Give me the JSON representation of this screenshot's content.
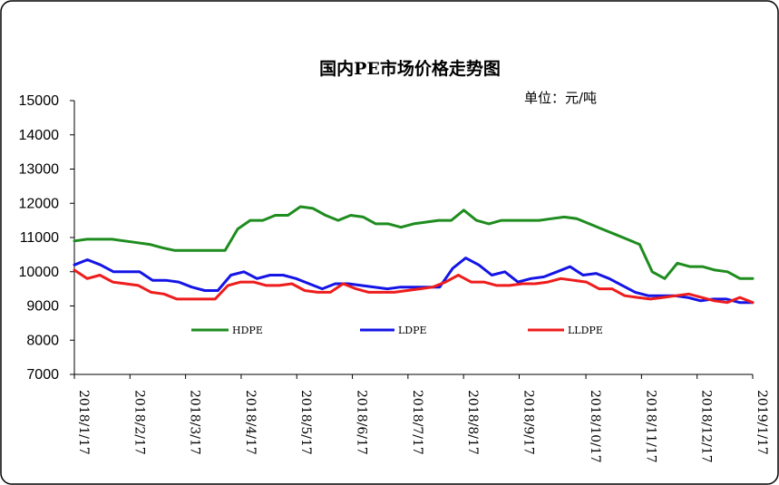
{
  "chart_data": {
    "type": "line",
    "title": "国内PE市场价格走势图",
    "unit_label": "单位：元/吨",
    "xlabel": "",
    "ylabel": "",
    "ylim": [
      7000,
      15000
    ],
    "yticks": [
      7000,
      8000,
      9000,
      10000,
      11000,
      12000,
      13000,
      14000,
      15000
    ],
    "grid": false,
    "legend_position": "inside-bottom",
    "x_tick_labels": [
      {
        "label": "2018/1/17",
        "index": 0
      },
      {
        "label": "2018/2/17",
        "index": 5
      },
      {
        "label": "2018/3/17",
        "index": 10
      },
      {
        "label": "2018/4/17",
        "index": 15
      },
      {
        "label": "2018/5/17",
        "index": 20
      },
      {
        "label": "2018/6/17",
        "index": 25
      },
      {
        "label": "2018/7/17",
        "index": 30
      },
      {
        "label": "2018/8/17",
        "index": 35
      },
      {
        "label": "2018/9/17",
        "index": 40
      },
      {
        "label": "2018/10/17",
        "index": 46
      },
      {
        "label": "2018/11/17",
        "index": 51
      },
      {
        "label": "2018/12/17",
        "index": 56
      },
      {
        "label": "2019/1/17",
        "index": 61
      }
    ],
    "series": [
      {
        "name": "HDPE",
        "color": "#1e8c1e",
        "values": [
          10900,
          10950,
          10950,
          10950,
          10900,
          10850,
          10800,
          10700,
          10620,
          10620,
          10620,
          10620,
          10620,
          11250,
          11500,
          11500,
          11650,
          11650,
          11900,
          11850,
          11650,
          11500,
          11650,
          11600,
          11400,
          11400,
          11300,
          11400,
          11450,
          11500,
          11500,
          11800,
          11500,
          11400,
          11500,
          11500,
          11500,
          11500,
          11550,
          11600,
          11550,
          11400,
          11250,
          11100,
          10950,
          10800,
          10000,
          9800,
          10250,
          10150,
          10150,
          10050,
          10000,
          9800,
          9800
        ]
      },
      {
        "name": "LDPE",
        "color": "#1414e6",
        "values": [
          10200,
          10350,
          10200,
          10000,
          10000,
          10000,
          9750,
          9750,
          9700,
          9550,
          9450,
          9450,
          9900,
          10000,
          9800,
          9900,
          9900,
          9800,
          9650,
          9500,
          9650,
          9650,
          9600,
          9550,
          9500,
          9550,
          9550,
          9550,
          9550,
          10100,
          10400,
          10200,
          9900,
          10000,
          9700,
          9800,
          9850,
          10000,
          10150,
          9900,
          9950,
          9800,
          9600,
          9400,
          9300,
          9300,
          9300,
          9250,
          9150,
          9200,
          9200,
          9100,
          9100
        ]
      },
      {
        "name": "LLDPE",
        "color": "#ee1c1c",
        "values": [
          10050,
          9800,
          9900,
          9700,
          9650,
          9600,
          9400,
          9350,
          9200,
          9200,
          9200,
          9200,
          9600,
          9700,
          9700,
          9600,
          9600,
          9650,
          9450,
          9400,
          9400,
          9650,
          9500,
          9400,
          9400,
          9400,
          9450,
          9500,
          9550,
          9700,
          9900,
          9700,
          9700,
          9600,
          9600,
          9650,
          9650,
          9700,
          9800,
          9750,
          9700,
          9500,
          9500,
          9300,
          9250,
          9200,
          9250,
          9300,
          9350,
          9250,
          9150,
          9100,
          9250,
          9100
        ]
      }
    ]
  }
}
